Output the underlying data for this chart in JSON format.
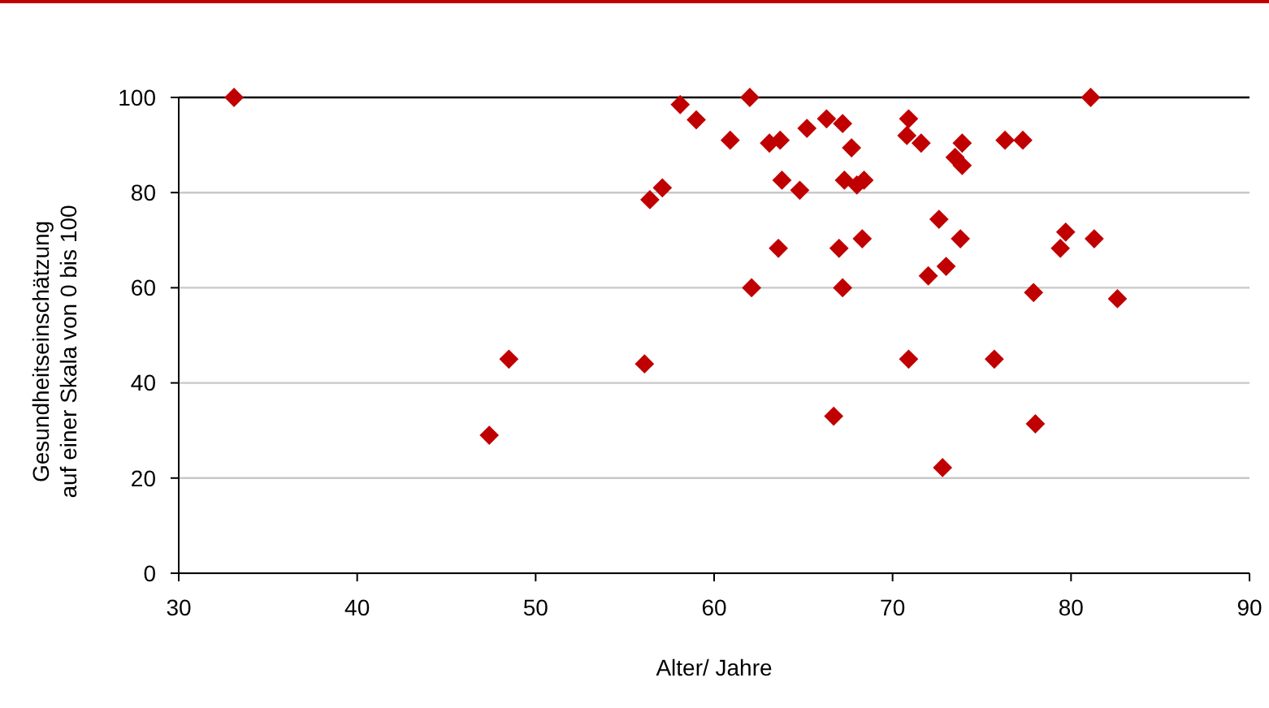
{
  "chart_data": {
    "type": "scatter",
    "xlabel": "Alter/ Jahre",
    "ylabel": "Gesundheitseinschätzung\nauf einer Skala von 0 bis 100",
    "xlim": [
      30,
      90
    ],
    "xticks": [
      30,
      40,
      50,
      60,
      70,
      80,
      90
    ],
    "ylim": [
      0,
      100
    ],
    "yticks": [
      0,
      20,
      40,
      60,
      80,
      100
    ],
    "grid": "y",
    "marker": "diamond",
    "series": [
      {
        "color": "#c00000",
        "x": [
          33.1,
          48.5,
          47.4,
          56.1,
          56.4,
          57.1,
          58.1,
          59.0,
          62.0,
          81.1,
          60.9,
          63.1,
          63.7,
          65.2,
          66.3,
          67.2,
          67.7,
          70.9,
          70.8,
          71.6,
          73.9,
          73.5,
          73.9,
          76.3,
          77.3,
          63.8,
          64.8,
          67.3,
          68.0,
          68.4,
          72.6,
          73.8,
          79.7,
          79.4,
          81.3,
          63.6,
          67.0,
          68.3,
          73.0,
          72.0,
          62.1,
          67.2,
          77.9,
          82.6,
          70.9,
          75.7,
          66.7,
          78.0,
          72.8
        ],
        "values": [
          100,
          45,
          29,
          44,
          78.5,
          81,
          98.5,
          95.3,
          100,
          100,
          91,
          90.4,
          91,
          93.5,
          95.5,
          94.5,
          89.4,
          95.5,
          92,
          90.4,
          90.4,
          87.4,
          85.7,
          91,
          91,
          82.6,
          80.5,
          82.6,
          81.6,
          82.6,
          74.4,
          70.3,
          71.7,
          68.3,
          70.3,
          68.3,
          68.3,
          70.3,
          64.5,
          62.5,
          60,
          60,
          59,
          57.7,
          45,
          45,
          33,
          31.4,
          22.2
        ]
      }
    ]
  }
}
